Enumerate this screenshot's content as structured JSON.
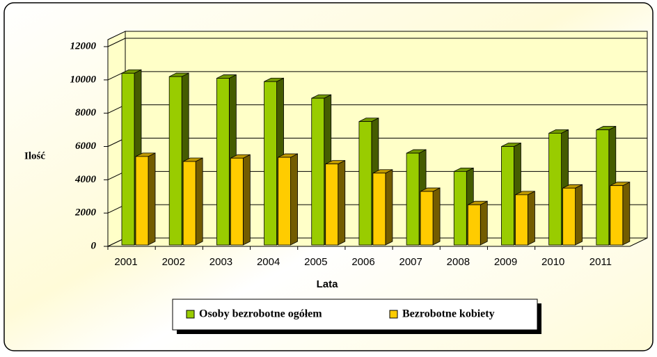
{
  "chart_data": {
    "type": "bar3d",
    "categories": [
      "2001",
      "2002",
      "2003",
      "2004",
      "2005",
      "2006",
      "2007",
      "2008",
      "2009",
      "2010",
      "2011"
    ],
    "series": [
      {
        "name": "Osoby bezrobotne ogółem",
        "color": "#99cc00",
        "values": [
          10400,
          10200,
          10100,
          9900,
          8900,
          7500,
          5600,
          4500,
          6000,
          6800,
          7000
        ]
      },
      {
        "name": "Bezrobotne kobiety",
        "color": "#ffcc00",
        "values": [
          5400,
          5100,
          5300,
          5350,
          4950,
          4400,
          3300,
          2500,
          3100,
          3500,
          3650
        ]
      }
    ],
    "ylim": [
      0,
      12000
    ],
    "yticks": [
      0,
      2000,
      4000,
      6000,
      8000,
      10000,
      12000
    ],
    "xlabel": "Lata",
    "ylabel": "Ilość",
    "grid": true
  }
}
